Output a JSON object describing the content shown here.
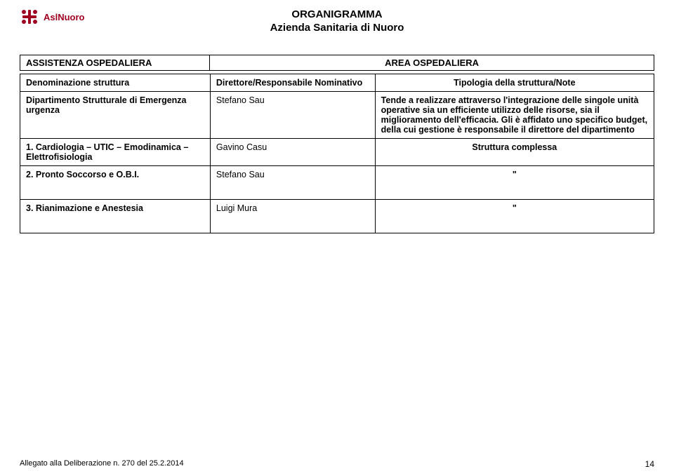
{
  "logo": {
    "brand": "AslNuoro",
    "primary_color": "#a00020"
  },
  "title": {
    "line1": "ORGANIGRAMMA",
    "line2": "Azienda Sanitaria di Nuoro"
  },
  "area_row": {
    "left": "ASSISTENZA OSPEDALIERA",
    "right": "AREA OSPEDALIERA"
  },
  "table": {
    "headers": {
      "col1": "Denominazione struttura",
      "col2": "Direttore/Responsabile Nominativo",
      "col3": "Tipologia della struttura/Note"
    },
    "rows": [
      {
        "col1": "Dipartimento Strutturale di Emergenza urgenza",
        "col2": "Stefano Sau",
        "col3": "Tende a realizzare attraverso l'integrazione delle singole unità operative sia un efficiente utilizzo delle risorse, sia il miglioramento dell'efficacia. Gli è affidato uno specifico budget, della cui gestione è responsabile il direttore del dipartimento",
        "col3_bold": true,
        "col3_justify": true
      },
      {
        "col1": "1. Cardiologia – UTIC – Emodinamica – Elettrofisiologia",
        "col2": "Gavino Casu",
        "col3": "Struttura complessa",
        "col3_center": true,
        "col3_bold": true
      },
      {
        "col1": "2. Pronto Soccorso e O.B.I.",
        "col2": "Stefano Sau",
        "col3": "\"",
        "col3_center": true,
        "col3_bold": true,
        "tall": true
      },
      {
        "col1": "3. Rianimazione e Anestesia",
        "col2": "Luigi Mura",
        "col3": "\"",
        "col3_center": true,
        "col3_bold": true,
        "tall": true
      }
    ]
  },
  "footer": {
    "left": "Allegato alla Deliberazione n. 270 del 25.2.2014",
    "page": "14"
  },
  "colors": {
    "text": "#000000",
    "background": "#ffffff",
    "border": "#000000"
  }
}
